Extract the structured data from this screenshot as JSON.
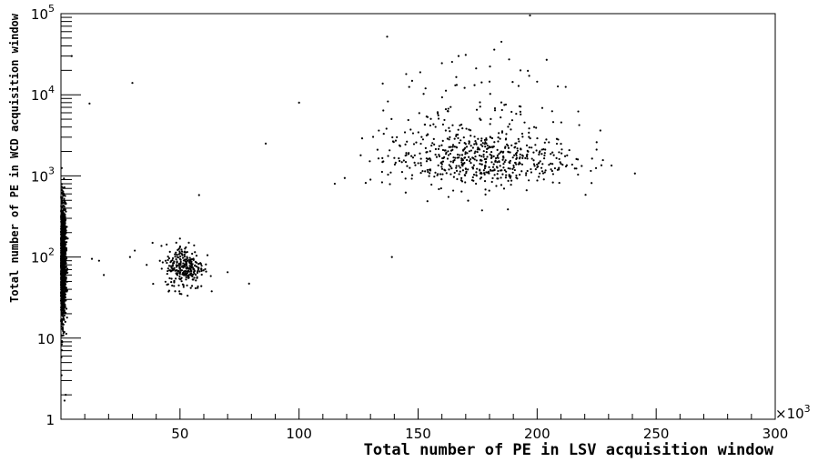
{
  "chart_data": {
    "type": "scatter",
    "title": "",
    "xlabel": "Total number of PE in LSV acquisition window",
    "ylabel": "Total number of PE in WCD acquisition window",
    "x_multiplier_label": "×10",
    "x_multiplier_exp": "3",
    "xlim": [
      0,
      300
    ],
    "ylim": [
      1,
      100000
    ],
    "yscale": "log",
    "grid": false,
    "xticks": [
      {
        "value": 50,
        "label": "50"
      },
      {
        "value": 100,
        "label": "100"
      },
      {
        "value": 150,
        "label": "150"
      },
      {
        "value": 200,
        "label": "200"
      },
      {
        "value": 250,
        "label": "250"
      },
      {
        "value": 300,
        "label": "300"
      }
    ],
    "yticks": [
      {
        "value": 1,
        "label": "1",
        "exp": ""
      },
      {
        "value": 10,
        "label": "10",
        "exp": ""
      },
      {
        "value": 100,
        "label": "10",
        "exp": "2"
      },
      {
        "value": 1000,
        "label": "10",
        "exp": "3"
      },
      {
        "value": 10000,
        "label": "10",
        "exp": "4"
      },
      {
        "value": 100000,
        "label": "10",
        "exp": "5"
      }
    ],
    "marker_color": "#000000",
    "clusters": [
      {
        "description": "dense band near zero LSV",
        "x_center": 0.6,
        "x_spread": 0.7,
        "y_log_center": 1.95,
        "y_log_spread": 0.35,
        "count": 1600
      },
      {
        "description": "cluster near 50e3",
        "x_center": 52,
        "x_spread": 4,
        "y_log_center": 1.88,
        "y_log_spread": 0.14,
        "count": 280
      },
      {
        "description": "broad cluster 135e3-215e3",
        "x_center": 175,
        "x_spread": 20,
        "y_log_center": 3.2,
        "y_log_spread": 0.17,
        "count": 520
      },
      {
        "description": "upper scatter of broad cluster",
        "x_center": 175,
        "x_spread": 20,
        "y_log_center": 3.65,
        "y_log_spread": 0.35,
        "count": 150
      }
    ],
    "points": [
      [
        4.5,
        30000
      ],
      [
        12,
        7800
      ],
      [
        30,
        14000
      ],
      [
        29,
        100
      ],
      [
        31,
        120
      ],
      [
        36,
        80
      ],
      [
        58,
        580
      ],
      [
        70,
        65
      ],
      [
        79,
        47
      ],
      [
        86,
        2500
      ],
      [
        100,
        8000
      ],
      [
        115,
        800
      ],
      [
        128,
        820
      ],
      [
        130,
        900
      ],
      [
        137,
        52000
      ],
      [
        139,
        100
      ],
      [
        145,
        18000
      ],
      [
        160,
        24500
      ],
      [
        167,
        30000
      ],
      [
        170,
        31000
      ],
      [
        182,
        36000
      ],
      [
        185,
        45000
      ],
      [
        197,
        95000
      ],
      [
        204,
        27000
      ],
      [
        200,
        14500
      ],
      [
        193,
        20000
      ],
      [
        212,
        12500
      ],
      [
        225,
        2600
      ],
      [
        227,
        1350
      ],
      [
        2,
        2
      ],
      [
        1.5,
        1.7
      ],
      [
        13,
        95
      ],
      [
        18,
        60
      ],
      [
        16,
        90
      ]
    ]
  }
}
